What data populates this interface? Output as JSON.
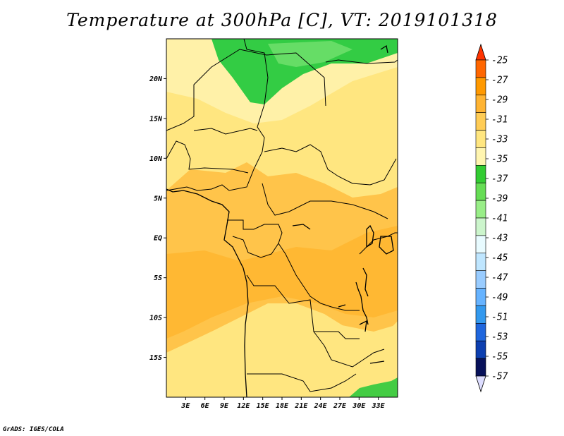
{
  "title": "Temperature at 300hPa [C], VT: 2019101318",
  "credit": "GrADS: IGES/COLA",
  "map": {
    "lon_range": [
      0,
      36
    ],
    "lat_range": [
      -20,
      25
    ],
    "lon_ticks": [
      "3E",
      "6E",
      "9E",
      "12E",
      "15E",
      "18E",
      "21E",
      "24E",
      "27E",
      "30E",
      "33E"
    ],
    "lat_ticks": [
      "20N",
      "15N",
      "10N",
      "5N",
      "EQ",
      "5S",
      "10S",
      "15S"
    ],
    "lon_tick_values": [
      3,
      6,
      9,
      12,
      15,
      18,
      21,
      24,
      27,
      30,
      33
    ],
    "lat_tick_values": [
      20,
      15,
      10,
      5,
      0,
      -5,
      -10,
      -15
    ]
  },
  "colorbar": {
    "labels": [
      "-25",
      "-27",
      "-29",
      "-31",
      "-33",
      "-35",
      "-37",
      "-39",
      "-41",
      "-43",
      "-45",
      "-47",
      "-49",
      "-51",
      "-53",
      "-55",
      "-57"
    ],
    "colors": [
      "#ff6600",
      "#ff9900",
      "#ffb433",
      "#ffcc55",
      "#ffe680",
      "#fff5b0",
      "#33cc33",
      "#66dd55",
      "#99ee88",
      "#ccf5cc",
      "#e8fbff",
      "#bfe6ff",
      "#99ccff",
      "#66b3ff",
      "#3399ee",
      "#1f66dd",
      "#0d3fb0",
      "#08115a",
      "#ddddff"
    ],
    "top_color": "#ff3300",
    "bottom_color": "#ddddff"
  }
}
